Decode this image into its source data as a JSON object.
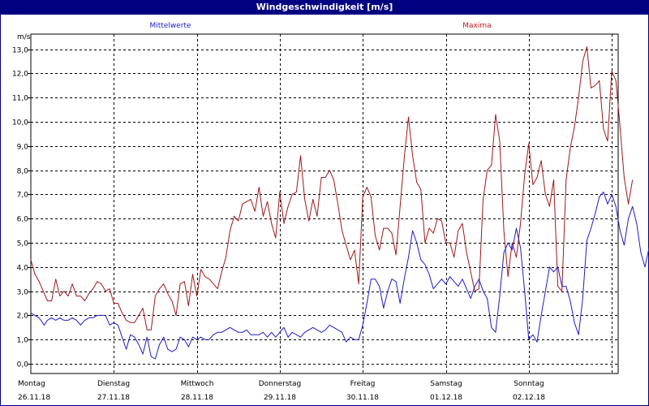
{
  "window": {
    "title": "Windgeschwindigkeit [m/s]"
  },
  "colors": {
    "series_mean": "#1c1ccc",
    "series_max": "#a01818",
    "grid": "#000000",
    "axis": "#000000"
  },
  "chart_data": {
    "type": "line",
    "title": "Windgeschwindigkeit [m/s]",
    "ylabel": "m/s",
    "xlabel": "",
    "ylim": [
      0,
      13.3
    ],
    "xlim": [
      0,
      7.17
    ],
    "grid": true,
    "yticks": [
      0,
      1,
      2,
      3,
      4,
      5,
      6,
      7,
      8,
      9,
      10,
      11,
      12,
      13
    ],
    "ytick_labels": [
      "0,0",
      "1,0",
      "2,0",
      "3,0",
      "4,0",
      "5,0",
      "6,0",
      "7,0",
      "8,0",
      "9,0",
      "10,0",
      "11,0",
      "12,0",
      "13,0"
    ],
    "day_labels": [
      {
        "day": "Montag",
        "date": "26.11.18"
      },
      {
        "day": "Dienstag",
        "date": "27.11.18"
      },
      {
        "day": "Mittwoch",
        "date": "28.11.18"
      },
      {
        "day": "Donnerstag",
        "date": "29.11.18"
      },
      {
        "day": "Freitag",
        "date": "30.11.18"
      },
      {
        "day": "Samstag",
        "date": "01.12.18"
      },
      {
        "day": "Sonntag",
        "date": "02.12.18"
      }
    ],
    "series": [
      {
        "name": "Mittelwerte",
        "color": "#1c1ccc",
        "points": [
          [
            0.0,
            2.1
          ],
          [
            0.05,
            2.0
          ],
          [
            0.1,
            1.9
          ],
          [
            0.16,
            1.6
          ],
          [
            0.2,
            1.8
          ],
          [
            0.25,
            1.9
          ],
          [
            0.3,
            1.8
          ],
          [
            0.35,
            1.9
          ],
          [
            0.4,
            1.8
          ],
          [
            0.45,
            1.8
          ],
          [
            0.5,
            1.9
          ],
          [
            0.55,
            1.8
          ],
          [
            0.6,
            1.6
          ],
          [
            0.65,
            1.8
          ],
          [
            0.7,
            1.9
          ],
          [
            0.75,
            1.9
          ],
          [
            0.8,
            2.0
          ],
          [
            0.85,
            2.0
          ],
          [
            0.9,
            2.0
          ],
          [
            0.95,
            1.6
          ],
          [
            1.0,
            1.7
          ],
          [
            1.05,
            1.6
          ],
          [
            1.1,
            1.1
          ],
          [
            1.15,
            0.6
          ],
          [
            1.2,
            1.2
          ],
          [
            1.25,
            1.1
          ],
          [
            1.3,
            0.8
          ],
          [
            1.35,
            0.4
          ],
          [
            1.4,
            1.1
          ],
          [
            1.45,
            0.3
          ],
          [
            1.5,
            0.2
          ],
          [
            1.55,
            0.8
          ],
          [
            1.6,
            1.1
          ],
          [
            1.65,
            0.6
          ],
          [
            1.7,
            0.5
          ],
          [
            1.75,
            0.6
          ],
          [
            1.8,
            1.1
          ],
          [
            1.85,
            1.0
          ],
          [
            1.9,
            0.7
          ],
          [
            1.95,
            1.1
          ],
          [
            2.0,
            1.0
          ],
          [
            2.05,
            1.1
          ],
          [
            2.1,
            1.0
          ],
          [
            2.15,
            1.0
          ],
          [
            2.2,
            1.2
          ],
          [
            2.25,
            1.3
          ],
          [
            2.3,
            1.3
          ],
          [
            2.35,
            1.4
          ],
          [
            2.4,
            1.5
          ],
          [
            2.45,
            1.4
          ],
          [
            2.5,
            1.3
          ],
          [
            2.55,
            1.3
          ],
          [
            2.6,
            1.4
          ],
          [
            2.65,
            1.2
          ],
          [
            2.7,
            1.2
          ],
          [
            2.75,
            1.2
          ],
          [
            2.8,
            1.3
          ],
          [
            2.85,
            1.1
          ],
          [
            2.9,
            1.3
          ],
          [
            2.95,
            1.1
          ],
          [
            3.0,
            1.3
          ],
          [
            3.05,
            1.5
          ],
          [
            3.1,
            1.1
          ],
          [
            3.15,
            1.3
          ],
          [
            3.2,
            1.2
          ],
          [
            3.25,
            1.1
          ],
          [
            3.3,
            1.3
          ],
          [
            3.35,
            1.4
          ],
          [
            3.4,
            1.5
          ],
          [
            3.45,
            1.4
          ],
          [
            3.5,
            1.3
          ],
          [
            3.55,
            1.4
          ],
          [
            3.6,
            1.6
          ],
          [
            3.65,
            1.5
          ],
          [
            3.7,
            1.4
          ],
          [
            3.75,
            1.3
          ],
          [
            3.8,
            0.9
          ],
          [
            3.85,
            1.1
          ],
          [
            3.9,
            1.0
          ],
          [
            3.95,
            1.0
          ],
          [
            4.0,
            1.6
          ],
          [
            4.05,
            2.5
          ],
          [
            4.1,
            3.5
          ],
          [
            4.15,
            3.5
          ],
          [
            4.2,
            3.2
          ],
          [
            4.25,
            2.3
          ],
          [
            4.3,
            3.0
          ],
          [
            4.35,
            3.5
          ],
          [
            4.4,
            3.4
          ],
          [
            4.45,
            2.5
          ],
          [
            4.5,
            3.5
          ],
          [
            4.55,
            4.4
          ],
          [
            4.6,
            5.5
          ],
          [
            4.65,
            5.0
          ],
          [
            4.7,
            4.3
          ],
          [
            4.75,
            4.1
          ],
          [
            4.8,
            3.7
          ],
          [
            4.85,
            3.1
          ],
          [
            4.9,
            3.3
          ],
          [
            4.95,
            3.5
          ],
          [
            5.0,
            3.3
          ],
          [
            5.05,
            3.6
          ],
          [
            5.1,
            3.4
          ],
          [
            5.15,
            3.2
          ],
          [
            5.2,
            3.5
          ],
          [
            5.25,
            3.1
          ],
          [
            5.3,
            2.7
          ],
          [
            5.35,
            3.2
          ],
          [
            5.4,
            3.5
          ],
          [
            5.45,
            3.0
          ],
          [
            5.5,
            2.7
          ],
          [
            5.55,
            1.5
          ],
          [
            5.6,
            1.3
          ],
          [
            5.65,
            2.8
          ],
          [
            5.7,
            4.6
          ],
          [
            5.75,
            5.0
          ],
          [
            5.8,
            4.7
          ],
          [
            5.85,
            5.6
          ],
          [
            5.9,
            4.8
          ],
          [
            5.95,
            3.0
          ],
          [
            6.0,
            1.0
          ],
          [
            6.05,
            1.2
          ],
          [
            6.1,
            0.9
          ],
          [
            6.15,
            2.0
          ],
          [
            6.2,
            3.0
          ],
          [
            6.25,
            4.0
          ],
          [
            6.3,
            3.8
          ],
          [
            6.35,
            4.0
          ],
          [
            6.4,
            3.2
          ],
          [
            6.45,
            3.2
          ],
          [
            6.5,
            2.6
          ],
          [
            6.55,
            1.7
          ],
          [
            6.6,
            1.2
          ],
          [
            6.65,
            2.7
          ],
          [
            6.7,
            5.1
          ],
          [
            6.75,
            5.6
          ],
          [
            6.8,
            6.2
          ],
          [
            6.85,
            6.9
          ],
          [
            6.9,
            7.1
          ],
          [
            6.95,
            6.6
          ],
          [
            7.0,
            7.0
          ],
          [
            7.05,
            6.5
          ],
          [
            7.1,
            5.5
          ],
          [
            7.15,
            4.9
          ],
          [
            7.2,
            6.0
          ],
          [
            7.25,
            6.5
          ],
          [
            7.3,
            5.8
          ],
          [
            7.35,
            4.6
          ],
          [
            7.4,
            4.0
          ],
          [
            7.45,
            4.8
          ]
        ]
      },
      {
        "name": "Maxima",
        "color": "#a01818",
        "points": [
          [
            0.0,
            4.3
          ],
          [
            0.05,
            3.7
          ],
          [
            0.1,
            3.4
          ],
          [
            0.15,
            3.0
          ],
          [
            0.2,
            2.6
          ],
          [
            0.25,
            2.6
          ],
          [
            0.3,
            3.5
          ],
          [
            0.35,
            2.8
          ],
          [
            0.4,
            3.0
          ],
          [
            0.45,
            2.8
          ],
          [
            0.5,
            3.3
          ],
          [
            0.55,
            2.8
          ],
          [
            0.6,
            2.8
          ],
          [
            0.65,
            2.6
          ],
          [
            0.7,
            2.9
          ],
          [
            0.75,
            3.1
          ],
          [
            0.8,
            3.4
          ],
          [
            0.85,
            3.3
          ],
          [
            0.9,
            3.0
          ],
          [
            0.95,
            3.1
          ],
          [
            1.0,
            2.5
          ],
          [
            1.05,
            2.5
          ],
          [
            1.1,
            2.1
          ],
          [
            1.15,
            1.8
          ],
          [
            1.2,
            1.7
          ],
          [
            1.25,
            1.7
          ],
          [
            1.3,
            2.0
          ],
          [
            1.35,
            2.3
          ],
          [
            1.4,
            1.4
          ],
          [
            1.45,
            1.4
          ],
          [
            1.5,
            2.8
          ],
          [
            1.55,
            3.1
          ],
          [
            1.6,
            3.3
          ],
          [
            1.65,
            2.9
          ],
          [
            1.7,
            2.6
          ],
          [
            1.75,
            2.0
          ],
          [
            1.8,
            3.3
          ],
          [
            1.85,
            3.4
          ],
          [
            1.9,
            2.4
          ],
          [
            1.95,
            3.7
          ],
          [
            2.0,
            2.8
          ],
          [
            2.05,
            3.9
          ],
          [
            2.1,
            3.6
          ],
          [
            2.15,
            3.5
          ],
          [
            2.2,
            3.3
          ],
          [
            2.25,
            3.1
          ],
          [
            2.3,
            3.8
          ],
          [
            2.35,
            4.4
          ],
          [
            2.4,
            5.5
          ],
          [
            2.45,
            6.1
          ],
          [
            2.5,
            5.9
          ],
          [
            2.55,
            6.6
          ],
          [
            2.6,
            6.7
          ],
          [
            2.65,
            6.8
          ],
          [
            2.7,
            6.3
          ],
          [
            2.75,
            7.3
          ],
          [
            2.8,
            6.1
          ],
          [
            2.85,
            6.7
          ],
          [
            2.9,
            5.8
          ],
          [
            2.95,
            5.2
          ],
          [
            3.0,
            7.1
          ],
          [
            3.05,
            5.8
          ],
          [
            3.1,
            6.5
          ],
          [
            3.15,
            7.0
          ],
          [
            3.2,
            7.1
          ],
          [
            3.25,
            8.6
          ],
          [
            3.3,
            6.8
          ],
          [
            3.35,
            5.9
          ],
          [
            3.4,
            6.8
          ],
          [
            3.45,
            6.1
          ],
          [
            3.5,
            7.7
          ],
          [
            3.55,
            7.7
          ],
          [
            3.6,
            8.0
          ],
          [
            3.65,
            7.6
          ],
          [
            3.7,
            6.6
          ],
          [
            3.75,
            5.5
          ],
          [
            3.8,
            4.9
          ],
          [
            3.85,
            4.3
          ],
          [
            3.9,
            4.7
          ],
          [
            3.95,
            3.3
          ],
          [
            4.0,
            6.9
          ],
          [
            4.05,
            7.3
          ],
          [
            4.1,
            6.9
          ],
          [
            4.15,
            5.3
          ],
          [
            4.2,
            4.7
          ],
          [
            4.25,
            5.6
          ],
          [
            4.3,
            5.6
          ],
          [
            4.35,
            5.4
          ],
          [
            4.4,
            4.5
          ],
          [
            4.45,
            6.5
          ],
          [
            4.5,
            8.5
          ],
          [
            4.55,
            10.2
          ],
          [
            4.6,
            8.6
          ],
          [
            4.65,
            7.5
          ],
          [
            4.7,
            7.2
          ],
          [
            4.75,
            5.0
          ],
          [
            4.8,
            5.6
          ],
          [
            4.85,
            5.4
          ],
          [
            4.9,
            6.0
          ],
          [
            4.95,
            5.9
          ],
          [
            5.0,
            5.0
          ],
          [
            5.05,
            5.0
          ],
          [
            5.1,
            4.4
          ],
          [
            5.15,
            5.5
          ],
          [
            5.2,
            5.8
          ],
          [
            5.25,
            4.6
          ],
          [
            5.3,
            3.8
          ],
          [
            5.35,
            3.0
          ],
          [
            5.4,
            3.1
          ],
          [
            5.45,
            6.8
          ],
          [
            5.5,
            8.0
          ],
          [
            5.55,
            8.2
          ],
          [
            5.6,
            10.3
          ],
          [
            5.65,
            9.2
          ],
          [
            5.7,
            5.5
          ],
          [
            5.75,
            3.6
          ],
          [
            5.8,
            5.0
          ],
          [
            5.85,
            4.4
          ],
          [
            5.9,
            5.8
          ],
          [
            5.95,
            7.8
          ],
          [
            6.0,
            9.1
          ],
          [
            6.05,
            7.4
          ],
          [
            6.1,
            7.7
          ],
          [
            6.15,
            8.4
          ],
          [
            6.2,
            7.0
          ],
          [
            6.25,
            6.5
          ],
          [
            6.3,
            7.6
          ],
          [
            6.35,
            3.2
          ],
          [
            6.4,
            3.0
          ],
          [
            6.45,
            7.6
          ],
          [
            6.5,
            8.9
          ],
          [
            6.55,
            9.8
          ],
          [
            6.6,
            11.0
          ],
          [
            6.65,
            12.5
          ],
          [
            6.7,
            13.1
          ],
          [
            6.75,
            11.4
          ],
          [
            6.8,
            11.5
          ],
          [
            6.85,
            11.7
          ],
          [
            6.9,
            9.7
          ],
          [
            6.95,
            9.2
          ],
          [
            7.0,
            12.1
          ],
          [
            7.05,
            11.7
          ],
          [
            7.1,
            9.8
          ],
          [
            7.15,
            7.7
          ],
          [
            7.2,
            6.6
          ],
          [
            7.25,
            7.6
          ]
        ]
      }
    ]
  }
}
